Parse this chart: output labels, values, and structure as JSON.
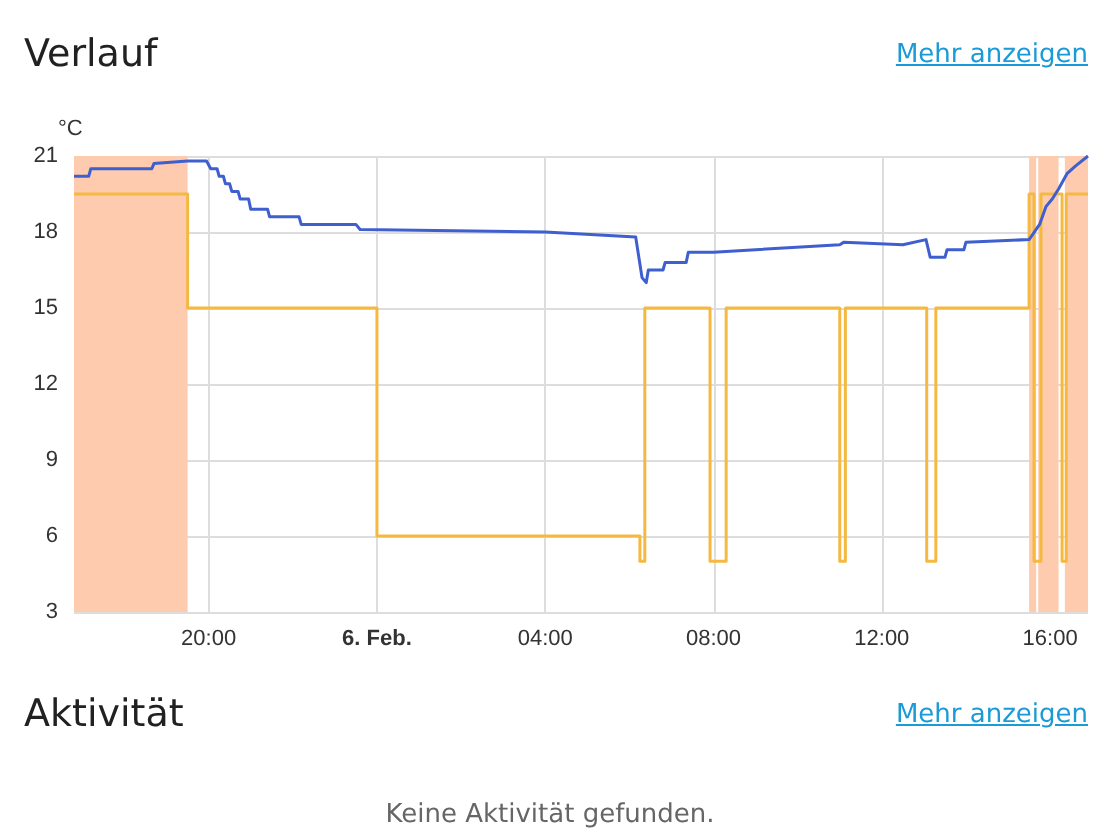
{
  "chart_data": {
    "type": "line",
    "title": "Verlauf",
    "ylabel": "°C",
    "annotations": [
      "Mehr anzeigen",
      "Aktivität",
      "Mehr anzeigen",
      "Keine Aktivität gefunden."
    ],
    "xlim": [
      "--02-05T16:48",
      "--02-06T16:54"
    ],
    "xticks": [
      {
        "value": "--02-05T20:00",
        "label": "20:00"
      },
      {
        "value": "--02-06T00:00",
        "label": "6. Feb."
      },
      {
        "value": "--02-06T04:00",
        "label": "04:00"
      },
      {
        "value": "--02-06T08:00",
        "label": "08:00"
      },
      {
        "value": "--02-06T12:00",
        "label": "12:00"
      },
      {
        "value": "--02-06T16:00",
        "label": "16:00"
      }
    ],
    "ylim": [
      3,
      21
    ],
    "yticks": [
      3,
      6,
      9,
      12,
      15,
      18,
      21
    ],
    "grid": true,
    "marker": "none",
    "bands": [
      {
        "axis": "x",
        "from": "--02-05T16:48",
        "to": "--02-05T19:30",
        "color": "#ffcbaf"
      },
      {
        "axis": "x",
        "from": "--02-06T15:30",
        "to": "--02-06T15:40",
        "color": "#ffcbaf"
      },
      {
        "axis": "x",
        "from": "--02-06T15:43",
        "to": "--02-06T16:12",
        "color": "#ffcbaf"
      },
      {
        "axis": "x",
        "from": "--02-06T16:21",
        "to": "--02-06T16:54",
        "color": "#ffcbaf"
      }
    ],
    "series": [
      {
        "type": "step",
        "color": "#f5b942",
        "x": [
          "--02-05T16:48",
          "--02-05T19:30",
          "--02-06T00:00",
          "--02-06T06:15",
          "--02-06T06:22",
          "--02-06T07:55",
          "--02-06T08:18",
          "--02-06T11:00",
          "--02-06T11:08",
          "--02-06T13:04",
          "--02-06T13:17",
          "--02-06T15:30",
          "--02-06T15:37",
          "--02-06T15:47",
          "--02-06T16:17",
          "--02-06T16:23",
          "--02-06T16:54"
        ],
        "values": [
          19.5,
          15,
          6,
          5,
          15,
          5,
          15,
          5,
          15,
          5,
          15,
          19.5,
          5,
          19.5,
          5,
          19.5,
          19.5
        ]
      },
      {
        "type": "line",
        "color": "#3f5fcf",
        "x": [
          "--02-05T16:48",
          "--02-05T17:09",
          "--02-05T17:12",
          "--02-05T18:39",
          "--02-05T18:42",
          "--02-05T19:30",
          "--02-05T19:57",
          "--02-05T20:03",
          "--02-05T20:12",
          "--02-05T20:15",
          "--02-05T20:21",
          "--02-05T20:24",
          "--02-05T20:30",
          "--02-05T20:33",
          "--02-05T20:42",
          "--02-05T20:45",
          "--02-05T20:57",
          "--02-05T21:00",
          "--02-05T21:24",
          "--02-05T21:27",
          "--02-05T22:09",
          "--02-05T22:12",
          "--02-05T23:30",
          "--02-05T23:36",
          "--02-06T04:00",
          "--02-06T06:09",
          "--02-06T06:18",
          "--02-06T06:24",
          "--02-06T06:27",
          "--02-06T06:48",
          "--02-06T06:51",
          "--02-06T07:21",
          "--02-06T07:24",
          "--02-06T08:00",
          "--02-06T09:00",
          "--02-06T11:00",
          "--02-06T11:06",
          "--02-06T12:30",
          "--02-06T13:03",
          "--02-06T13:09",
          "--02-06T13:30",
          "--02-06T13:33",
          "--02-06T13:57",
          "--02-06T14:00",
          "--02-06T15:30",
          "--02-06T15:45",
          "--02-06T15:54",
          "--02-06T16:03",
          "--02-06T16:12",
          "--02-06T16:24",
          "--02-06T16:36",
          "--02-06T16:54"
        ],
        "values": [
          20.2,
          20.2,
          20.5,
          20.5,
          20.7,
          20.8,
          20.8,
          20.5,
          20.5,
          20.2,
          20.2,
          19.9,
          19.9,
          19.6,
          19.6,
          19.3,
          19.3,
          18.9,
          18.9,
          18.6,
          18.6,
          18.3,
          18.3,
          18.1,
          18.0,
          17.8,
          16.2,
          16.0,
          16.5,
          16.5,
          16.8,
          16.8,
          17.2,
          17.2,
          17.3,
          17.5,
          17.6,
          17.5,
          17.7,
          17.0,
          17.0,
          17.3,
          17.3,
          17.6,
          17.7,
          18.3,
          19.0,
          19.3,
          19.7,
          20.3,
          20.6,
          21.0
        ]
      }
    ]
  }
}
